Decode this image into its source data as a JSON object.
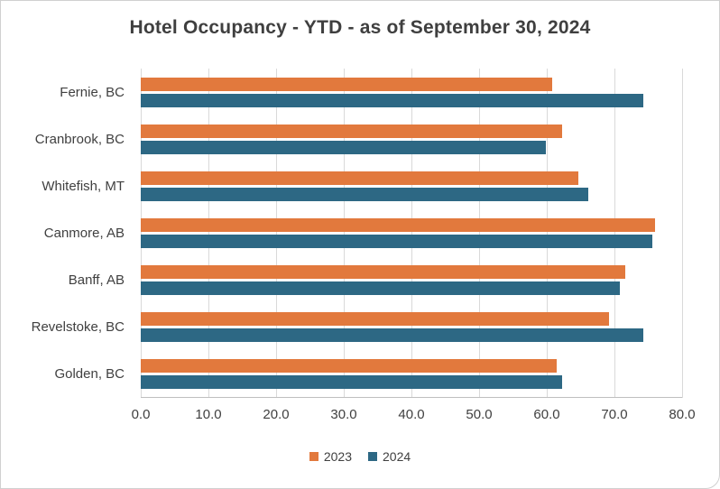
{
  "chart_data": {
    "type": "bar",
    "orientation": "horizontal",
    "title": "Hotel Occupancy - YTD - as of September 30, 2024",
    "categories": [
      "Fernie, BC",
      "Cranbrook, BC",
      "Whitefish, MT",
      "Canmore, AB",
      "Banff, AB",
      "Revelstoke, BC",
      "Golden, BC"
    ],
    "series": [
      {
        "name": "2023",
        "color": "#E2793D",
        "values": [
          60.8,
          62.2,
          64.6,
          76.0,
          71.6,
          69.2,
          61.5
        ]
      },
      {
        "name": "2024",
        "color": "#2D6884",
        "values": [
          74.3,
          59.9,
          66.1,
          75.6,
          70.8,
          74.3,
          62.3
        ]
      }
    ],
    "xlim": [
      0,
      80
    ],
    "x_ticks": [
      "0.0",
      "10.0",
      "20.0",
      "30.0",
      "40.0",
      "50.0",
      "60.0",
      "70.0",
      "80.0"
    ],
    "grid": true,
    "legend_position": "bottom",
    "colors": {
      "gridline": "#d9d9d9",
      "axis_text": "#404040",
      "title_text": "#3f3f3f"
    }
  }
}
